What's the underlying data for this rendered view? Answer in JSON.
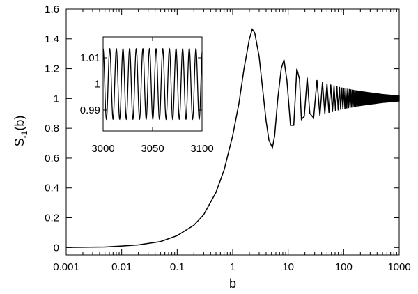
{
  "chart_data": [
    {
      "type": "line",
      "xscale": "log",
      "xlim": [
        0.001,
        1000
      ],
      "ylim": [
        -0.05,
        1.6
      ],
      "xlabel": "b",
      "ylabel": "S-1(b)",
      "ylabel_main": "S",
      "ylabel_sub": "-1",
      "ylabel_tail": "(b)",
      "x_ticks": [
        0.001,
        0.01,
        0.1,
        1,
        10,
        100,
        1000
      ],
      "x_tick_labels": [
        "0.001",
        "0.01",
        "0.1",
        "1",
        "10",
        "100",
        "1000"
      ],
      "y_ticks": [
        0,
        0.2,
        0.4,
        0.6,
        0.8,
        1,
        1.2,
        1.4,
        1.6
      ],
      "y_tick_labels": [
        "0",
        "0.2",
        "0.4",
        "0.6",
        "0.8",
        "1",
        "1.2",
        "1.4",
        "1.6"
      ],
      "grid": false,
      "line_color": "#000000",
      "series": [
        {
          "x": [
            0.001,
            0.002,
            0.005,
            0.01,
            0.02,
            0.05,
            0.1,
            0.2,
            0.3,
            0.5,
            0.7,
            1.0,
            1.3,
            1.6,
            2.0,
            2.25,
            2.5,
            3.0,
            3.5,
            4.0,
            4.5,
            5.2,
            5.7,
            6.5,
            7.5,
            8.4,
            9.5,
            11.0,
            12.6,
            14.3,
            16.0,
            17.3,
            19.5,
            22.0,
            24.5,
            30,
            40,
            60,
            100,
            150,
            200,
            300,
            500,
            700,
            1000
          ],
          "y": [
            0.001,
            0.002,
            0.004,
            0.01,
            0.018,
            0.04,
            0.08,
            0.15,
            0.22,
            0.37,
            0.52,
            0.75,
            0.97,
            1.2,
            1.4,
            1.465,
            1.44,
            1.28,
            1.05,
            0.85,
            0.72,
            0.67,
            0.75,
            1.0,
            1.2,
            1.26,
            1.12,
            0.82,
            0.82,
            1.2,
            1.13,
            0.86,
            0.88,
            1.14,
            0.9,
            1.11,
            0.91,
            1.08,
            0.94,
            1.05,
            0.96,
            1.03,
            0.98,
            1.02,
            1.0
          ]
        }
      ],
      "oscillation": {
        "y_upper_at": [
          [
            24.5,
            1.14
          ],
          [
            50,
            1.1
          ],
          [
            100,
            1.07
          ],
          [
            200,
            1.05
          ],
          [
            500,
            1.03
          ],
          [
            1000,
            1.02
          ]
        ],
        "y_lower_at": [
          [
            24.5,
            0.86
          ],
          [
            50,
            0.9
          ],
          [
            100,
            0.93
          ],
          [
            200,
            0.95
          ],
          [
            500,
            0.97
          ],
          [
            1000,
            0.98
          ]
        ]
      }
    },
    {
      "type": "line",
      "xlim": [
        3000,
        3100
      ],
      "ylim": [
        0.982,
        1.018
      ],
      "x_ticks": [
        3000,
        3050,
        3100
      ],
      "x_tick_labels": [
        "3000",
        "3050",
        "3100"
      ],
      "y_ticks": [
        0.99,
        1.0,
        1.01
      ],
      "y_tick_labels": [
        "0.99",
        "1",
        "1.01"
      ],
      "series": [
        {
          "mean": 1.0,
          "amplitude": 0.0135,
          "period": 6.7,
          "cycles_shown": 15
        }
      ]
    }
  ]
}
